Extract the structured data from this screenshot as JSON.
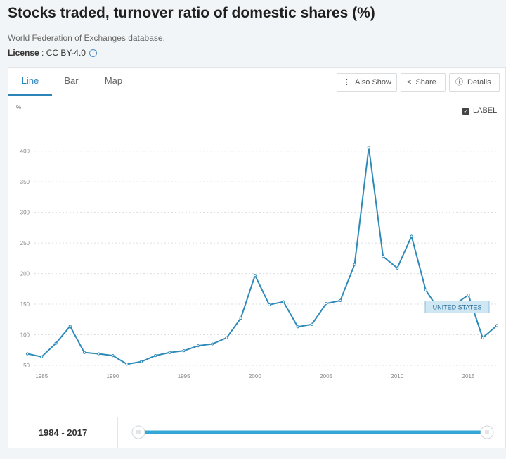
{
  "page": {
    "title": "Stocks traded, turnover ratio of domestic shares (%)",
    "source": "World Federation of Exchanges database.",
    "license_label": "License",
    "license_value": " : CC BY-4.0",
    "info_icon": "info-circle-icon"
  },
  "tabs": [
    {
      "label": "Line",
      "active": true
    },
    {
      "label": "Bar",
      "active": false
    },
    {
      "label": "Map",
      "active": false
    }
  ],
  "toolbar": {
    "also_show": "Also Show",
    "share": "Share",
    "details": "Details"
  },
  "label_toggle": {
    "text": "LABEL",
    "checked": true
  },
  "chart_data": {
    "type": "line",
    "ylabel": "%",
    "ylim": [
      50,
      410
    ],
    "yticks": [
      50,
      100,
      150,
      200,
      250,
      300,
      350,
      400
    ],
    "xlim": [
      1984,
      2017
    ],
    "xticks": [
      1985,
      1990,
      1995,
      2000,
      2005,
      2010,
      2015
    ],
    "grid": "horizontal dashed",
    "line_color": "#2e8ab8",
    "series": [
      {
        "name": "UNITED STATES",
        "x": [
          1984,
          1985,
          1986,
          1987,
          1988,
          1989,
          1990,
          1991,
          1992,
          1993,
          1994,
          1995,
          1996,
          1997,
          1998,
          1999,
          2000,
          2001,
          2002,
          2003,
          2004,
          2005,
          2006,
          2007,
          2008,
          2009,
          2010,
          2011,
          2012,
          2013,
          2014,
          2015,
          2016,
          2017
        ],
        "values": [
          69,
          64,
          86,
          114,
          71,
          69,
          66,
          52,
          56,
          66,
          71,
          74,
          82,
          85,
          95,
          127,
          197,
          149,
          154,
          113,
          117,
          151,
          156,
          215,
          406,
          228,
          209,
          261,
          173,
          138,
          149,
          165,
          95,
          115
        ]
      }
    ]
  },
  "range": {
    "text": "1984 - 2017"
  },
  "slider": {
    "start_fraction": 0,
    "end_fraction": 1
  }
}
